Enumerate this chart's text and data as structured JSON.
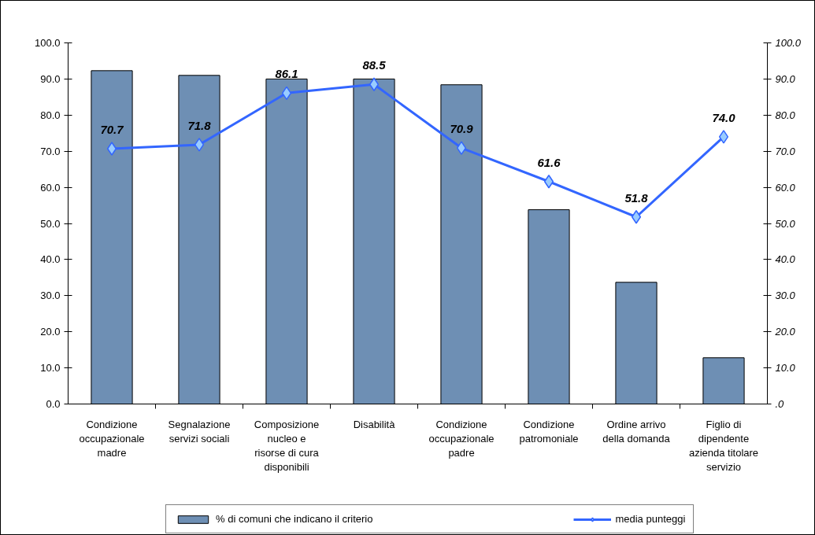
{
  "chart_data": {
    "type": "bar",
    "categories": [
      "Condizione occupazionale madre",
      "Segnalazione servizi sociali",
      "Composizione nucleo e risorse di cura disponibili",
      "Disabilità",
      "Condizione occupazionale padre",
      "Condizione patromoniale",
      "Ordine arrivo della domanda",
      "Figlio di dipendente azienda titolare servizio"
    ],
    "series": [
      {
        "name": "% di comuni che indicano il criterio",
        "color": "#6e8fb4",
        "values": [
          92.3,
          91.0,
          90.0,
          90.0,
          88.4,
          53.8,
          33.7,
          12.8
        ]
      },
      {
        "name": "media punteggi",
        "type": "line",
        "axis": "y2",
        "color": "#3366ff",
        "values": [
          70.7,
          71.8,
          86.1,
          88.5,
          70.9,
          61.6,
          51.8,
          74.0
        ],
        "value_labels": [
          "70.7",
          "71.8",
          "86.1",
          "88.5",
          "70.9",
          "61.6",
          "51.8",
          "74.0"
        ]
      }
    ],
    "ylim": [
      0,
      100
    ],
    "yticks": [
      {
        "value": 0,
        "label": "0.0"
      },
      {
        "value": 10,
        "label": "10.0"
      },
      {
        "value": 20,
        "label": "20.0"
      },
      {
        "value": 30,
        "label": "30.0"
      },
      {
        "value": 40,
        "label": "40.0"
      },
      {
        "value": 50,
        "label": "50.0"
      },
      {
        "value": 60,
        "label": "60.0"
      },
      {
        "value": 70,
        "label": "70.0"
      },
      {
        "value": 80,
        "label": "80.0"
      },
      {
        "value": 90,
        "label": "90.0"
      },
      {
        "value": 100,
        "label": "100.0"
      }
    ],
    "y2lim": [
      0,
      100
    ],
    "y2ticks": [
      {
        "value": 0,
        "label": ".0"
      },
      {
        "value": 10,
        "label": "10.0"
      },
      {
        "value": 20,
        "label": "20.0"
      },
      {
        "value": 30,
        "label": "30.0"
      },
      {
        "value": 40,
        "label": "40.0"
      },
      {
        "value": 50,
        "label": "50.0"
      },
      {
        "value": 60,
        "label": "60.0"
      },
      {
        "value": 70,
        "label": "70.0"
      },
      {
        "value": 80,
        "label": "80.0"
      },
      {
        "value": 90,
        "label": "90.0"
      },
      {
        "value": 100,
        "label": "100.0"
      }
    ],
    "marker": "diamond",
    "grid": false,
    "legend": "bottom"
  }
}
